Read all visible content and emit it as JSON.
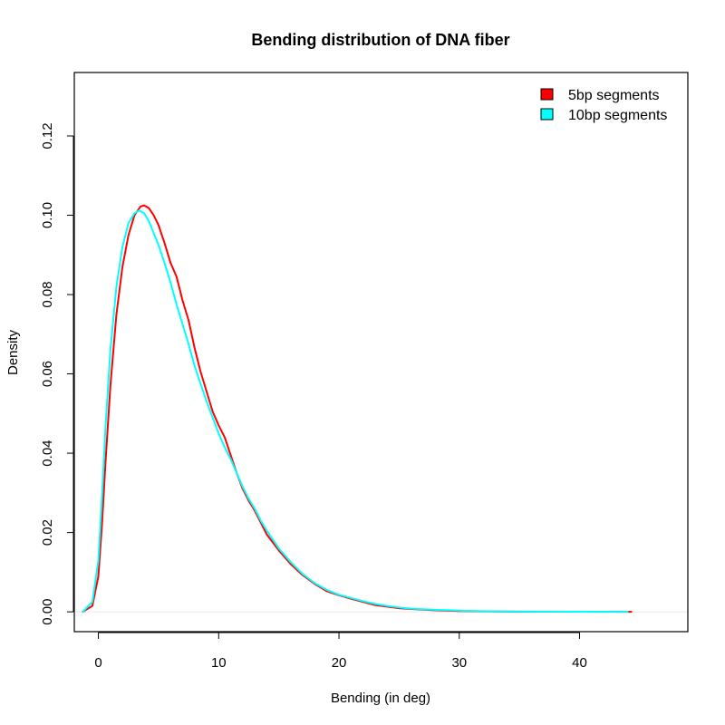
{
  "chart_data": {
    "type": "line",
    "title": "Bending distribution of DNA fiber",
    "xlabel": "Bending (in deg)",
    "ylabel": "Density",
    "xlim": [
      -2,
      49
    ],
    "ylim": [
      -0.005,
      0.136
    ],
    "x_ticks": [
      0,
      10,
      20,
      30,
      40
    ],
    "x_tick_labels": [
      "0",
      "10",
      "20",
      "30",
      "40"
    ],
    "y_ticks": [
      0.0,
      0.02,
      0.04,
      0.06,
      0.08,
      0.1,
      0.12
    ],
    "y_tick_labels": [
      "0.00",
      "0.02",
      "0.04",
      "0.06",
      "0.08",
      "0.10",
      "0.12"
    ],
    "grid": false,
    "baseline": 0,
    "legend_position": "top-right",
    "series": [
      {
        "name": "5bp segments",
        "color": "#ff0000",
        "x": [
          -1.3,
          -0.5,
          0,
          0.3,
          0.6,
          1.0,
          1.5,
          2.0,
          2.5,
          3.0,
          3.5,
          3.8,
          4.2,
          4.6,
          5.0,
          5.5,
          6.0,
          6.5,
          7.0,
          7.5,
          8.0,
          8.5,
          9.0,
          9.5,
          10.0,
          10.5,
          11.0,
          11.5,
          12.0,
          12.5,
          13.0,
          13.5,
          14.0,
          15.0,
          16.0,
          17.0,
          18.0,
          19.0,
          20.0,
          21.0,
          22.0,
          23.0,
          24.0,
          25.0,
          26.0,
          28.0,
          30.0,
          33.0,
          36.0,
          40.0,
          44.3
        ],
        "y": [
          0.0,
          0.0015,
          0.009,
          0.022,
          0.038,
          0.057,
          0.075,
          0.087,
          0.095,
          0.1,
          0.1022,
          0.1025,
          0.1018,
          0.1,
          0.0975,
          0.093,
          0.088,
          0.0845,
          0.0785,
          0.0735,
          0.0665,
          0.0605,
          0.0555,
          0.0505,
          0.047,
          0.044,
          0.0395,
          0.035,
          0.031,
          0.028,
          0.0255,
          0.0225,
          0.0195,
          0.0155,
          0.012,
          0.0092,
          0.007,
          0.0052,
          0.0042,
          0.0033,
          0.0025,
          0.0017,
          0.0013,
          0.0009,
          0.0007,
          0.0004,
          0.0002,
          8e-05,
          4e-05,
          2e-05,
          0.0
        ]
      },
      {
        "name": "10bp segments",
        "color": "#00ffff",
        "x": [
          -1.3,
          -0.5,
          0,
          0.3,
          0.6,
          1.0,
          1.5,
          2.0,
          2.5,
          3.0,
          3.4,
          3.8,
          4.2,
          4.6,
          5.0,
          5.5,
          6.0,
          6.5,
          7.0,
          7.5,
          8.0,
          8.5,
          9.0,
          9.5,
          10.0,
          10.5,
          11.0,
          11.5,
          12.0,
          12.5,
          13.0,
          13.5,
          14.0,
          15.0,
          16.0,
          17.0,
          18.0,
          19.0,
          20.0,
          21.0,
          22.0,
          23.0,
          24.0,
          25.0,
          26.0,
          28.0,
          30.0,
          33.0,
          36.0,
          40.0,
          44.0
        ],
        "y": [
          0.0,
          0.0025,
          0.013,
          0.029,
          0.047,
          0.066,
          0.082,
          0.092,
          0.098,
          0.1005,
          0.1012,
          0.1005,
          0.0985,
          0.0955,
          0.0925,
          0.088,
          0.083,
          0.0775,
          0.0725,
          0.0675,
          0.062,
          0.0575,
          0.053,
          0.049,
          0.045,
          0.0415,
          0.0385,
          0.035,
          0.0315,
          0.0285,
          0.026,
          0.023,
          0.0205,
          0.016,
          0.0125,
          0.0095,
          0.0072,
          0.0055,
          0.0043,
          0.0035,
          0.0027,
          0.002,
          0.0015,
          0.0011,
          0.0008,
          0.0005,
          0.0003,
          0.0001,
          5e-05,
          2e-05,
          0.0
        ]
      }
    ]
  }
}
